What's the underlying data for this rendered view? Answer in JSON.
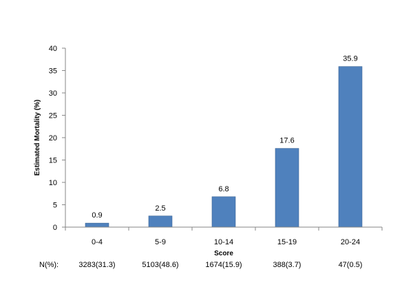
{
  "chart_data": {
    "type": "bar",
    "title": "",
    "xlabel": "Score",
    "ylabel": "Estimated Mortality (%)",
    "ylim": [
      0,
      40
    ],
    "yticks": [
      0,
      5,
      10,
      15,
      20,
      25,
      30,
      35,
      40
    ],
    "categories": [
      "0-4",
      "5-9",
      "10-14",
      "15-19",
      "20-24"
    ],
    "values": [
      0.9,
      2.5,
      6.8,
      17.6,
      35.9
    ],
    "data_labels": [
      "0.9",
      "2.5",
      "6.8",
      "17.6",
      "35.9"
    ],
    "bar_color": "#4f81bd",
    "grid": false,
    "legend": "none",
    "n_row": {
      "label": "N(%):",
      "values": [
        "3283(31.3)",
        "5103(48.6)",
        "1674(15.9)",
        "388(3.7)",
        "47(0.5)"
      ]
    }
  }
}
